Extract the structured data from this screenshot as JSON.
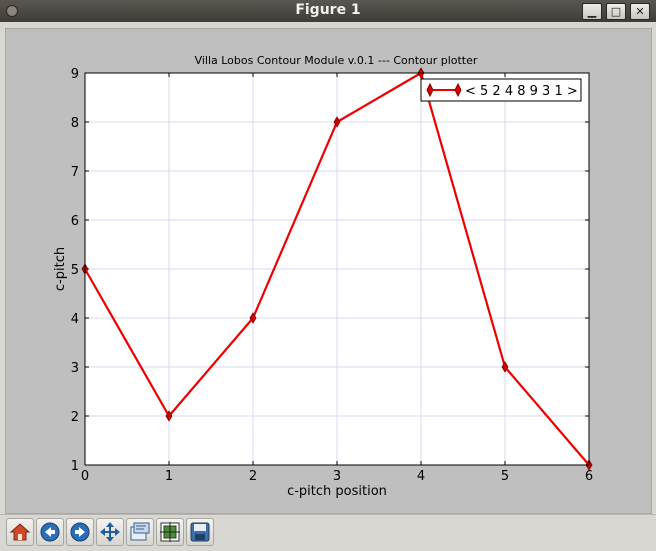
{
  "window": {
    "title": "Figure 1",
    "minimize_glyph": "▁",
    "maximize_glyph": "□",
    "close_glyph": "✕"
  },
  "figure": {
    "title": "Villa Lobos Contour Module v.0.1 --- Contour plotter"
  },
  "chart_data": {
    "type": "line",
    "title": "Villa Lobos Contour Module v.0.1 --- Contour plotter",
    "xlabel": "c-pitch position",
    "ylabel": "c-pitch",
    "xlim": [
      0,
      6
    ],
    "ylim": [
      1,
      9
    ],
    "xticks": [
      "0",
      "1",
      "2",
      "3",
      "4",
      "5",
      "6"
    ],
    "yticks": [
      "1",
      "2",
      "3",
      "4",
      "5",
      "6",
      "7",
      "8",
      "9"
    ],
    "grid": true,
    "legend_position": "top-right",
    "series": [
      {
        "name": "< 5 2 4 8 9 3 1 >",
        "x": [
          0,
          1,
          2,
          3,
          4,
          5,
          6
        ],
        "y": [
          5,
          2,
          4,
          8,
          9,
          3,
          1
        ],
        "color": "#ee0000",
        "marker": "thin-diamond"
      }
    ]
  },
  "toolbar": {
    "buttons": [
      {
        "name": "home-button",
        "icon": "home-icon"
      },
      {
        "name": "back-button",
        "icon": "back-arrow-icon"
      },
      {
        "name": "forward-button",
        "icon": "forward-arrow-icon"
      },
      {
        "name": "pan-button",
        "icon": "pan-move-icon"
      },
      {
        "name": "zoom-rect-button",
        "icon": "zoom-rect-icon"
      },
      {
        "name": "subplots-button",
        "icon": "subplots-icon"
      },
      {
        "name": "save-button",
        "icon": "save-floppy-icon"
      }
    ]
  }
}
